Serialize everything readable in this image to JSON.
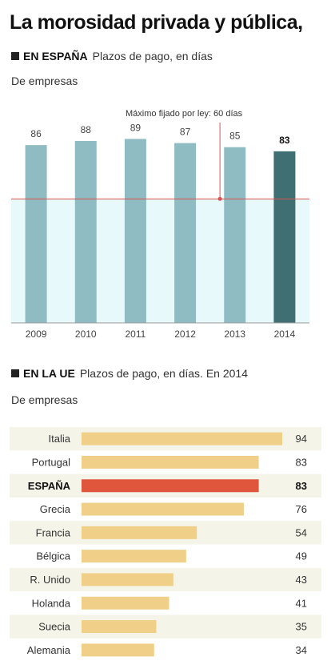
{
  "title": "La morosidad privada y pública,",
  "colors": {
    "bar": "#8fbcc2",
    "bar_highlight": "#3f6e73",
    "zone_fill": "#e8f9fb",
    "law_line": "#d9534f",
    "hbar": "#f0d088",
    "hbar_highlight": "#e0563d",
    "stripe": "#f4f4e8"
  },
  "spain": {
    "tag": "EN ESPAÑA",
    "label": "Plazos de pago, en días",
    "subtitle": "De empresas",
    "annotation": "Máximo fijado por ley: 60 días"
  },
  "eu": {
    "tag": "EN LA UE",
    "label": "Plazos de pago, en días. En 2014",
    "subtitle": "De empresas"
  },
  "chart_data": [
    {
      "type": "bar",
      "categories": [
        "2009",
        "2010",
        "2011",
        "2012",
        "2013",
        "2014"
      ],
      "values": [
        86,
        88,
        89,
        87,
        85,
        83
      ],
      "highlight": "2014",
      "reference_line": 60,
      "annotation": "Máximo fijado por ley: 60 días",
      "ylim": [
        0,
        100
      ]
    },
    {
      "type": "bar",
      "orientation": "horizontal",
      "categories": [
        "Italia",
        "Portugal",
        "ESPAÑA",
        "Grecia",
        "Francia",
        "Bélgica",
        "R. Unido",
        "Holanda",
        "Suecia",
        "Alemania"
      ],
      "values": [
        94,
        83,
        83,
        76,
        54,
        49,
        43,
        41,
        35,
        34
      ],
      "highlight": "ESPAÑA",
      "xlim": [
        0,
        94
      ]
    }
  ]
}
